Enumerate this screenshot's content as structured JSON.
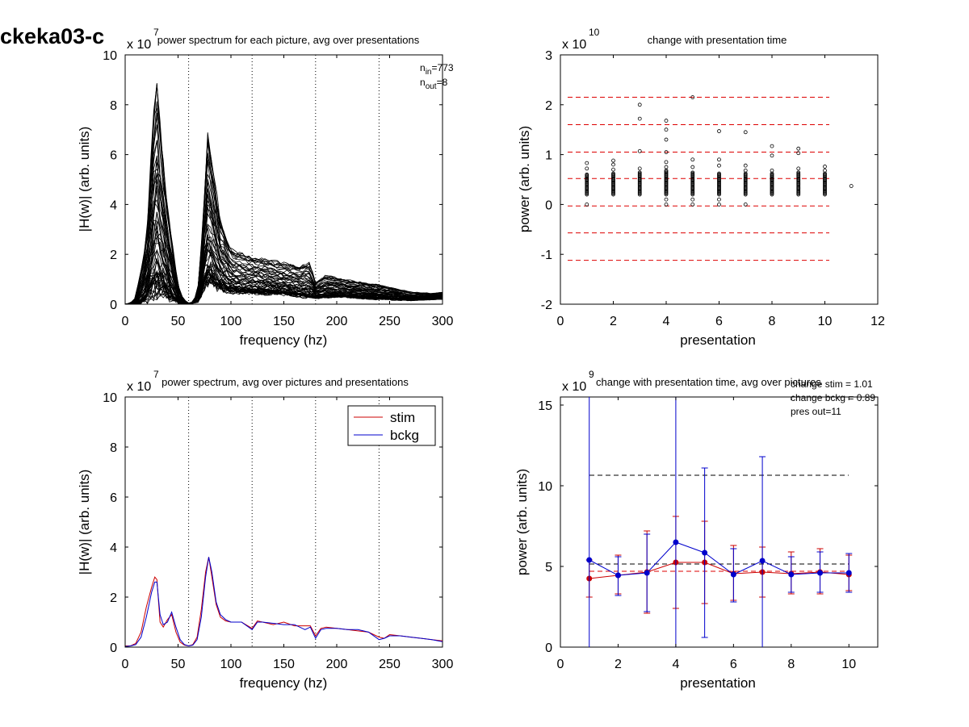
{
  "page": {
    "title": "ckeka03-c"
  },
  "colors": {
    "stim": "#cc0000",
    "bckg": "#0000cc",
    "dashed_ref": "#dd0000",
    "lines": "#000000"
  },
  "chart_data": [
    {
      "id": "tl",
      "type": "line",
      "title": "power spectrum for each picture, avg over presentations",
      "xlabel": "frequency (hz)",
      "ylabel": "|H(w)| (arb. units)",
      "exponent_prefix": "x 10",
      "exponent": "7",
      "xlim": [
        0,
        300
      ],
      "ylim": [
        0,
        10
      ],
      "xticks": [
        "0",
        "50",
        "100",
        "150",
        "200",
        "250",
        "300"
      ],
      "yticks": [
        "0",
        "2",
        "4",
        "6",
        "8",
        "10"
      ],
      "vlines_dotted": [
        60,
        120,
        180,
        240,
        300
      ],
      "annotation": {
        "n_in_label": "n",
        "n_in_sub": "in",
        "n_in_value": "=773",
        "n_out_label": "n",
        "n_out_sub": "out",
        "n_out_value": "=8"
      },
      "envelope_upper": [
        [
          0,
          0
        ],
        [
          5,
          0.05
        ],
        [
          10,
          0.3
        ],
        [
          15,
          1.5
        ],
        [
          20,
          2.6
        ],
        [
          25,
          6.5
        ],
        [
          28,
          9.0
        ],
        [
          30,
          9.5
        ],
        [
          33,
          7.5
        ],
        [
          38,
          5.0
        ],
        [
          43,
          3.0
        ],
        [
          50,
          0.8
        ],
        [
          55,
          0.2
        ],
        [
          60,
          0.05
        ],
        [
          65,
          0.1
        ],
        [
          70,
          1.0
        ],
        [
          75,
          4.8
        ],
        [
          78,
          7.1
        ],
        [
          82,
          6.0
        ],
        [
          90,
          3.5
        ],
        [
          100,
          2.3
        ],
        [
          115,
          2.0
        ],
        [
          130,
          1.9
        ],
        [
          150,
          1.7
        ],
        [
          165,
          1.6
        ],
        [
          175,
          1.7
        ],
        [
          180,
          0.9
        ],
        [
          190,
          1.2
        ],
        [
          210,
          1.0
        ],
        [
          240,
          0.8
        ],
        [
          250,
          0.7
        ],
        [
          270,
          0.5
        ],
        [
          290,
          0.45
        ],
        [
          300,
          0.5
        ]
      ],
      "envelope_lower": [
        [
          0,
          0
        ],
        [
          10,
          0.0
        ],
        [
          15,
          0.05
        ],
        [
          20,
          0.15
        ],
        [
          25,
          0.4
        ],
        [
          30,
          0.5
        ],
        [
          35,
          0.5
        ],
        [
          40,
          0.3
        ],
        [
          50,
          0.05
        ],
        [
          60,
          0.0
        ],
        [
          70,
          0.1
        ],
        [
          75,
          0.7
        ],
        [
          80,
          0.9
        ],
        [
          90,
          0.6
        ],
        [
          100,
          0.5
        ],
        [
          120,
          0.45
        ],
        [
          150,
          0.4
        ],
        [
          180,
          0.25
        ],
        [
          200,
          0.3
        ],
        [
          240,
          0.2
        ],
        [
          270,
          0.15
        ],
        [
          300,
          0.2
        ]
      ],
      "n_traces": 60
    },
    {
      "id": "tr",
      "type": "scatter",
      "title": "change with presentation time",
      "xlabel": "presentation",
      "ylabel": "power (arb. units)",
      "exponent_prefix": "x 10",
      "exponent": "10",
      "xlim": [
        0,
        12
      ],
      "ylim": [
        -2,
        3
      ],
      "xticks": [
        "0",
        "2",
        "4",
        "6",
        "8",
        "10",
        "12"
      ],
      "yticks": [
        "-2",
        "-1",
        "0",
        "1",
        "2",
        "3"
      ],
      "hlines_dashed": [
        2.15,
        1.6,
        1.05,
        0.52,
        -0.03,
        -0.57,
        -1.12
      ],
      "columns": [
        {
          "x": 1,
          "dense": [
            0.2,
            0.6
          ],
          "outliers": [
            0.0,
            0.72,
            0.83
          ]
        },
        {
          "x": 2,
          "dense": [
            0.2,
            0.62
          ],
          "outliers": [
            0.7,
            0.8,
            0.88
          ]
        },
        {
          "x": 3,
          "dense": [
            0.2,
            0.65
          ],
          "outliers": [
            0.72,
            1.07,
            1.72,
            2.0
          ]
        },
        {
          "x": 4,
          "dense": [
            0.2,
            0.68
          ],
          "outliers": [
            0.0,
            0.1,
            0.75,
            0.85,
            1.05,
            1.3,
            1.5,
            1.68
          ]
        },
        {
          "x": 5,
          "dense": [
            0.2,
            0.65
          ],
          "outliers": [
            0.0,
            0.1,
            0.75,
            0.9,
            2.15
          ]
        },
        {
          "x": 6,
          "dense": [
            0.2,
            0.62
          ],
          "outliers": [
            0.0,
            0.1,
            0.78,
            0.9,
            1.47
          ]
        },
        {
          "x": 7,
          "dense": [
            0.2,
            0.62
          ],
          "outliers": [
            0.0,
            0.68,
            0.78,
            1.45
          ]
        },
        {
          "x": 8,
          "dense": [
            0.2,
            0.62
          ],
          "outliers": [
            0.68,
            0.98,
            1.17
          ]
        },
        {
          "x": 9,
          "dense": [
            0.2,
            0.65
          ],
          "outliers": [
            0.72,
            1.03,
            1.12
          ]
        },
        {
          "x": 10,
          "dense": [
            0.2,
            0.62
          ],
          "outliers": [
            0.68,
            0.76
          ]
        },
        {
          "x": 11,
          "dense": [],
          "outliers": [
            0.37
          ]
        }
      ]
    },
    {
      "id": "bl",
      "type": "line",
      "title": "power spectrum, avg over pictures and presentations",
      "xlabel": "frequency (hz)",
      "ylabel": "|H(w)| (arb. units)",
      "exponent_prefix": "x 10",
      "exponent": "7",
      "xlim": [
        0,
        300
      ],
      "ylim": [
        0,
        10
      ],
      "xticks": [
        "0",
        "50",
        "100",
        "150",
        "200",
        "250",
        "300"
      ],
      "yticks": [
        "0",
        "2",
        "4",
        "6",
        "8",
        "10"
      ],
      "vlines_dotted": [
        60,
        120,
        180,
        240,
        300
      ],
      "legend": {
        "placement": "top-right",
        "entries": [
          "stim",
          "bckg"
        ]
      },
      "x": [
        0,
        5,
        10,
        15,
        20,
        25,
        28,
        30,
        33,
        36,
        40,
        44,
        48,
        52,
        56,
        60,
        64,
        68,
        72,
        76,
        79,
        82,
        86,
        90,
        95,
        100,
        110,
        120,
        125,
        130,
        140,
        150,
        160,
        170,
        175,
        180,
        185,
        190,
        200,
        210,
        220,
        230,
        240,
        245,
        250,
        260,
        270,
        280,
        290,
        300
      ],
      "series": [
        {
          "name": "stim",
          "values": [
            0.05,
            0.05,
            0.15,
            0.6,
            1.6,
            2.4,
            2.8,
            2.7,
            1.0,
            0.8,
            1.1,
            1.3,
            0.6,
            0.2,
            0.08,
            0.05,
            0.1,
            0.4,
            1.5,
            3.0,
            3.6,
            2.8,
            1.7,
            1.2,
            1.05,
            1.0,
            1.0,
            0.75,
            1.05,
            1.0,
            0.9,
            1.0,
            0.85,
            0.85,
            0.85,
            0.45,
            0.75,
            0.8,
            0.75,
            0.7,
            0.65,
            0.6,
            0.4,
            0.35,
            0.5,
            0.45,
            0.4,
            0.35,
            0.3,
            0.25
          ]
        },
        {
          "name": "bckg",
          "values": [
            0.02,
            0.05,
            0.1,
            0.4,
            1.2,
            2.2,
            2.6,
            2.6,
            1.3,
            0.9,
            1.0,
            1.4,
            0.8,
            0.3,
            0.1,
            0.05,
            0.08,
            0.3,
            1.2,
            2.8,
            3.6,
            3.0,
            1.8,
            1.3,
            1.1,
            1.0,
            1.0,
            0.7,
            1.0,
            1.0,
            0.95,
            0.9,
            0.9,
            0.7,
            0.8,
            0.35,
            0.7,
            0.75,
            0.75,
            0.7,
            0.7,
            0.6,
            0.3,
            0.35,
            0.45,
            0.45,
            0.4,
            0.35,
            0.3,
            0.22
          ]
        }
      ]
    },
    {
      "id": "br",
      "type": "line",
      "title": "change with presentation time, avg over pictures",
      "xlabel": "presentation",
      "ylabel": "power (arb. units)",
      "exponent_prefix": "x 10",
      "exponent": "9",
      "xlim": [
        0,
        11
      ],
      "ylim": [
        0,
        15.5
      ],
      "xticks": [
        "0",
        "2",
        "4",
        "6",
        "8",
        "10"
      ],
      "yticks": [
        "0",
        "5",
        "10",
        "15"
      ],
      "annotation": {
        "line1": "change stim = 1.01",
        "line2": "change bckg = 0.89",
        "line3": "pres out=11"
      },
      "hlines_dashed_black": [
        10.65,
        5.15
      ],
      "hlines_dashed_red": [
        4.7
      ],
      "x": [
        1,
        2,
        3,
        4,
        5,
        6,
        7,
        8,
        9,
        10
      ],
      "series": [
        {
          "name": "stim",
          "values": [
            4.25,
            4.45,
            4.65,
            5.25,
            5.25,
            4.55,
            4.65,
            4.55,
            4.65,
            4.5
          ],
          "err_low": [
            3.1,
            3.3,
            2.1,
            2.4,
            2.7,
            2.9,
            3.1,
            3.3,
            3.3,
            3.5
          ],
          "err_high": [
            5.4,
            5.7,
            7.2,
            8.1,
            7.8,
            6.3,
            6.2,
            5.9,
            6.1,
            5.7
          ]
        },
        {
          "name": "bckg",
          "values": [
            5.4,
            4.45,
            4.6,
            6.5,
            5.85,
            4.5,
            5.35,
            4.5,
            4.6,
            4.6
          ],
          "err_low": [
            0.0,
            3.2,
            2.2,
            0.0,
            0.6,
            2.8,
            0.0,
            3.4,
            3.4,
            3.4
          ],
          "err_high": [
            15.5,
            5.6,
            7.0,
            15.5,
            11.1,
            6.1,
            11.8,
            5.6,
            5.9,
            5.8
          ]
        }
      ]
    }
  ]
}
